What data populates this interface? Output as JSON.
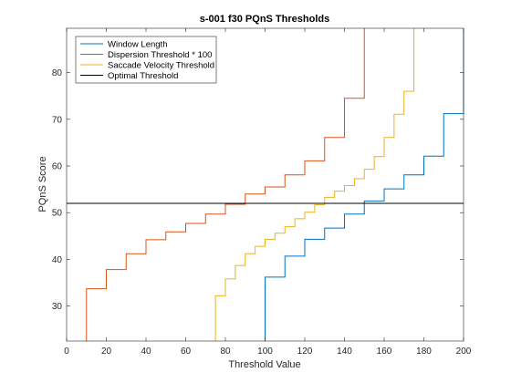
{
  "chart_data": {
    "type": "line",
    "title": "s-001 f30 PQnS Thresholds",
    "xlabel": "Threshold Value",
    "ylabel": "PQnS Score",
    "xlim": [
      0,
      200
    ],
    "ylim": [
      22.5,
      89.5
    ],
    "xticks": [
      "0",
      "20",
      "40",
      "60",
      "80",
      "100",
      "120",
      "140",
      "160",
      "180",
      "200"
    ],
    "yticks": [
      "30",
      "40",
      "50",
      "60",
      "70",
      "80"
    ],
    "grid": false,
    "legend_position": "top-left",
    "series": [
      {
        "name": "Window Length",
        "color": "#0072BD",
        "style": "stairs",
        "x": [
          100,
          110,
          120,
          130,
          140,
          150,
          160,
          170,
          180,
          190,
          200
        ],
        "y": [
          36.2,
          40.7,
          44.3,
          46.7,
          49.7,
          52.5,
          55.1,
          58.1,
          62.1,
          71.2,
          89.5
        ]
      },
      {
        "name": "Dispersion Threshold * 100",
        "color": "#D95319",
        "style": "stairs",
        "x": [
          10,
          20,
          30,
          40,
          50,
          60,
          70,
          80,
          90,
          100,
          110,
          120,
          130,
          140,
          150
        ],
        "y": [
          33.7,
          37.8,
          41.2,
          44.2,
          45.9,
          47.7,
          49.7,
          51.8,
          54.0,
          55.5,
          58.1,
          61.1,
          66.1,
          74.5,
          89.5
        ]
      },
      {
        "name": "Saccade Velocity Threshold",
        "color": "#EDB120",
        "style": "stairs",
        "x": [
          75,
          80,
          85,
          90,
          95,
          100,
          105,
          110,
          115,
          120,
          125,
          130,
          135,
          140,
          145,
          150,
          155,
          160,
          165,
          170,
          175
        ],
        "y": [
          32.2,
          35.8,
          38.7,
          41.2,
          42.8,
          44.3,
          45.6,
          47.0,
          48.7,
          50.1,
          51.7,
          53.3,
          54.6,
          55.8,
          57.3,
          59.3,
          62.0,
          66.1,
          71.1,
          76.0,
          89.5
        ]
      },
      {
        "name": "Optimal Threshold",
        "color": "#000000",
        "style": "hline",
        "y": 52.0
      }
    ]
  }
}
